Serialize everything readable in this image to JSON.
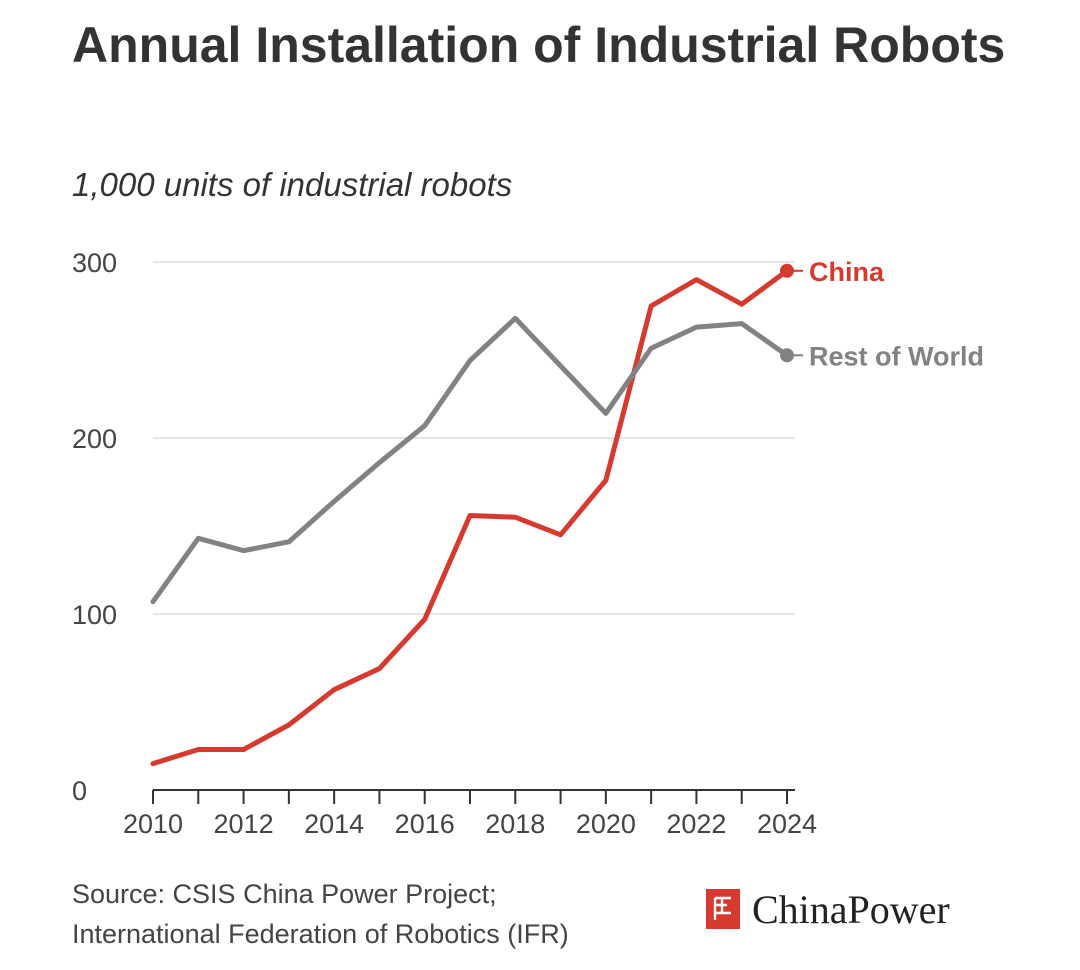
{
  "header": {
    "title": "Annual Installation of Industrial Robots",
    "subtitle": "1,000 units of industrial robots"
  },
  "footer": {
    "source_line1": "Source: CSIS China Power Project;",
    "source_line2": "International Federation of Robotics (IFR)",
    "logo_text": "ChinaPower",
    "logo_color": "#d63a2f"
  },
  "chart_data": {
    "type": "line",
    "title": "Annual Installation of Industrial Robots",
    "subtitle": "1,000 units of industrial robots",
    "xlabel": "",
    "ylabel": "",
    "x": [
      2010,
      2011,
      2012,
      2013,
      2014,
      2015,
      2016,
      2017,
      2018,
      2019,
      2020,
      2021,
      2022,
      2023,
      2024
    ],
    "x_tick_labels": [
      "2010",
      "2012",
      "2014",
      "2016",
      "2018",
      "2020",
      "2022",
      "2024"
    ],
    "y_ticks": [
      0,
      100,
      200,
      300
    ],
    "y_tick_labels": [
      "0",
      "100",
      "200",
      "300"
    ],
    "ylim": [
      0,
      300
    ],
    "xlim": [
      2010,
      2024
    ],
    "grid": "horizontal",
    "series": [
      {
        "name": "China",
        "color": "#d63a2f",
        "values": [
          15,
          23,
          23,
          37,
          57,
          69,
          97,
          156,
          155,
          145,
          176,
          275,
          290,
          276,
          295
        ]
      },
      {
        "name": "Rest of World",
        "color": "#828282",
        "values": [
          107,
          143,
          136,
          141,
          164,
          186,
          207,
          244,
          268,
          241,
          214,
          251,
          263,
          265,
          247
        ]
      }
    ]
  }
}
